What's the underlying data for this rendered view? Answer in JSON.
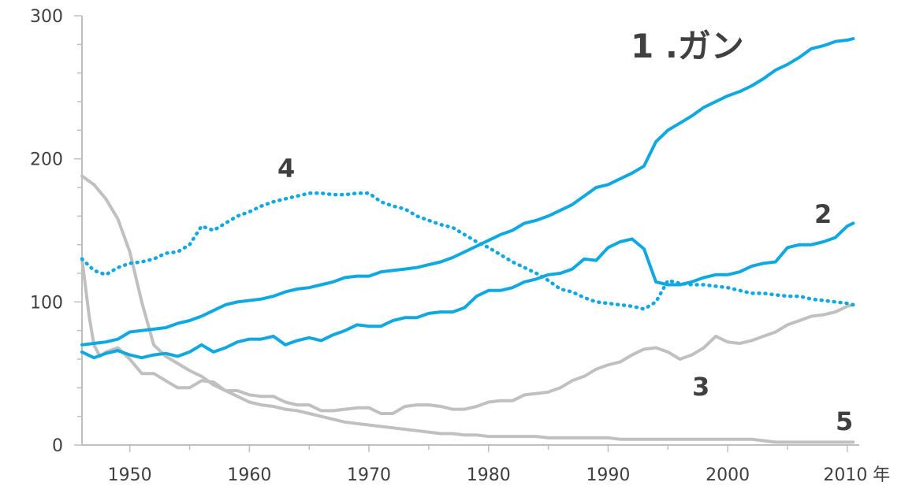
{
  "chart_data": {
    "type": "line",
    "title": "",
    "xlabel": "",
    "ylabel": "",
    "x_unit": "年",
    "xlim": [
      1946,
      2011
    ],
    "ylim": [
      0,
      300
    ],
    "yticks": [
      0,
      100,
      200,
      300
    ],
    "xticks": [
      1950,
      1960,
      1970,
      1980,
      1990,
      2000,
      2010
    ],
    "grid": false,
    "series": [
      {
        "name": "1.ガン",
        "label": "1 .ガン",
        "color": "#0fa8e0",
        "style": "solid",
        "x": [
          1946,
          1947,
          1948,
          1949,
          1950,
          1951,
          1952,
          1953,
          1954,
          1955,
          1956,
          1957,
          1958,
          1959,
          1960,
          1961,
          1962,
          1963,
          1964,
          1965,
          1966,
          1967,
          1968,
          1969,
          1970,
          1971,
          1972,
          1973,
          1974,
          1975,
          1976,
          1977,
          1978,
          1979,
          1980,
          1981,
          1982,
          1983,
          1984,
          1985,
          1986,
          1987,
          1988,
          1989,
          1990,
          1991,
          1992,
          1993,
          1994,
          1995,
          1996,
          1997,
          1998,
          1999,
          2000,
          2001,
          2002,
          2003,
          2004,
          2005,
          2006,
          2007,
          2008,
          2009,
          2010,
          2010.5
        ],
        "y": [
          70,
          71,
          72,
          74,
          79,
          80,
          81,
          82,
          85,
          87,
          90,
          94,
          98,
          100,
          101,
          102,
          104,
          107,
          109,
          110,
          112,
          114,
          117,
          118,
          118,
          121,
          122,
          123,
          124,
          126,
          128,
          131,
          135,
          139,
          143,
          147,
          150,
          155,
          157,
          160,
          164,
          168,
          174,
          180,
          182,
          186,
          190,
          195,
          212,
          220,
          225,
          230,
          236,
          240,
          244,
          247,
          251,
          256,
          262,
          266,
          271,
          277,
          279,
          282,
          283,
          284
        ]
      },
      {
        "name": "2",
        "label": "2",
        "color": "#0fa8e0",
        "style": "solid",
        "x": [
          1946,
          1947,
          1948,
          1949,
          1950,
          1951,
          1952,
          1953,
          1954,
          1955,
          1956,
          1957,
          1958,
          1959,
          1960,
          1961,
          1962,
          1963,
          1964,
          1965,
          1966,
          1967,
          1968,
          1969,
          1970,
          1971,
          1972,
          1973,
          1974,
          1975,
          1976,
          1977,
          1978,
          1979,
          1980,
          1981,
          1982,
          1983,
          1984,
          1985,
          1986,
          1987,
          1988,
          1989,
          1990,
          1991,
          1992,
          1993,
          1994,
          1995,
          1996,
          1997,
          1998,
          1999,
          2000,
          2001,
          2002,
          2003,
          2004,
          2005,
          2006,
          2007,
          2008,
          2009,
          2010,
          2010.5
        ],
        "y": [
          65,
          61,
          64,
          66,
          63,
          61,
          63,
          64,
          62,
          65,
          70,
          65,
          68,
          72,
          74,
          74,
          76,
          70,
          73,
          75,
          73,
          77,
          80,
          84,
          83,
          83,
          87,
          89,
          89,
          92,
          93,
          93,
          96,
          104,
          108,
          108,
          110,
          114,
          116,
          119,
          120,
          123,
          130,
          129,
          138,
          142,
          144,
          137,
          114,
          112,
          112,
          114,
          117,
          119,
          119,
          121,
          125,
          127,
          128,
          138,
          140,
          140,
          142,
          145,
          153,
          155
        ]
      },
      {
        "name": "3",
        "label": "3",
        "color": "#c0c0c0",
        "style": "solid",
        "x": [
          1946,
          1946.6,
          1947,
          1947.5,
          1948,
          1949,
          1950,
          1951,
          1952,
          1953,
          1954,
          1955,
          1956,
          1957,
          1958,
          1959,
          1960,
          1961,
          1962,
          1963,
          1964,
          1965,
          1966,
          1967,
          1968,
          1969,
          1970,
          1971,
          1972,
          1973,
          1974,
          1975,
          1976,
          1977,
          1978,
          1979,
          1980,
          1981,
          1982,
          1983,
          1984,
          1985,
          1986,
          1987,
          1988,
          1989,
          1990,
          1991,
          1992,
          1993,
          1994,
          1995,
          1996,
          1997,
          1998,
          1999,
          2000,
          2001,
          2002,
          2003,
          2004,
          2005,
          2006,
          2007,
          2008,
          2009,
          2010,
          2010.5
        ],
        "y": [
          130,
          90,
          70,
          62,
          65,
          68,
          60,
          50,
          50,
          45,
          40,
          40,
          45,
          44,
          38,
          38,
          35,
          34,
          34,
          30,
          28,
          28,
          24,
          24,
          25,
          26,
          26,
          22,
          22,
          27,
          28,
          28,
          27,
          25,
          25,
          27,
          30,
          31,
          31,
          35,
          36,
          37,
          40,
          45,
          48,
          53,
          56,
          58,
          63,
          67,
          68,
          65,
          60,
          63,
          68,
          76,
          72,
          71,
          73,
          76,
          79,
          84,
          87,
          90,
          91,
          93,
          97,
          98
        ]
      },
      {
        "name": "4",
        "label": "4",
        "color": "#0fa8e0",
        "style": "dotted",
        "x": [
          1946,
          1947,
          1948,
          1949,
          1950,
          1951,
          1952,
          1953,
          1954,
          1955,
          1956,
          1957,
          1958,
          1959,
          1960,
          1961,
          1962,
          1963,
          1964,
          1965,
          1966,
          1967,
          1968,
          1969,
          1970,
          1971,
          1972,
          1973,
          1974,
          1975,
          1976,
          1977,
          1978,
          1979,
          1980,
          1981,
          1982,
          1983,
          1984,
          1985,
          1986,
          1987,
          1988,
          1989,
          1990,
          1991,
          1992,
          1993,
          1994,
          1995,
          1996,
          1997,
          1998,
          1999,
          2000,
          2001,
          2002,
          2003,
          2004,
          2005,
          2006,
          2007,
          2008,
          2009,
          2010,
          2010.5
        ],
        "y": [
          130,
          122,
          119,
          124,
          127,
          128,
          130,
          134,
          135,
          140,
          153,
          150,
          155,
          160,
          163,
          167,
          170,
          172,
          174,
          176,
          176,
          175,
          175,
          176,
          176,
          170,
          167,
          165,
          160,
          157,
          154,
          152,
          147,
          142,
          138,
          133,
          128,
          124,
          120,
          115,
          109,
          107,
          103,
          100,
          99,
          98,
          97,
          95,
          100,
          115,
          113,
          112,
          112,
          111,
          110,
          108,
          106,
          106,
          105,
          104,
          104,
          102,
          101,
          100,
          99,
          98
        ]
      },
      {
        "name": "5",
        "label": "5",
        "color": "#c0c0c0",
        "style": "solid",
        "x": [
          1946,
          1947,
          1948,
          1949,
          1950,
          1951,
          1952,
          1953,
          1954,
          1955,
          1956,
          1957,
          1958,
          1959,
          1960,
          1961,
          1962,
          1963,
          1964,
          1965,
          1966,
          1967,
          1968,
          1969,
          1970,
          1971,
          1972,
          1973,
          1974,
          1975,
          1976,
          1977,
          1978,
          1979,
          1980,
          1981,
          1982,
          1983,
          1984,
          1985,
          1986,
          1987,
          1988,
          1989,
          1990,
          1991,
          1992,
          1993,
          1994,
          1995,
          1996,
          1997,
          1998,
          1999,
          2000,
          2001,
          2002,
          2003,
          2004,
          2005,
          2006,
          2007,
          2008,
          2009,
          2010,
          2010.5
        ],
        "y": [
          188,
          182,
          172,
          158,
          135,
          100,
          70,
          62,
          57,
          52,
          48,
          42,
          38,
          34,
          30,
          28,
          27,
          25,
          24,
          22,
          20,
          18,
          16,
          15,
          14,
          13,
          12,
          11,
          10,
          9,
          8,
          8,
          7,
          7,
          6,
          6,
          6,
          6,
          6,
          5,
          5,
          5,
          5,
          5,
          5,
          4,
          4,
          4,
          4,
          4,
          4,
          4,
          4,
          4,
          4,
          4,
          4,
          3,
          2,
          2,
          2,
          2,
          2,
          2,
          2,
          2
        ]
      }
    ]
  }
}
